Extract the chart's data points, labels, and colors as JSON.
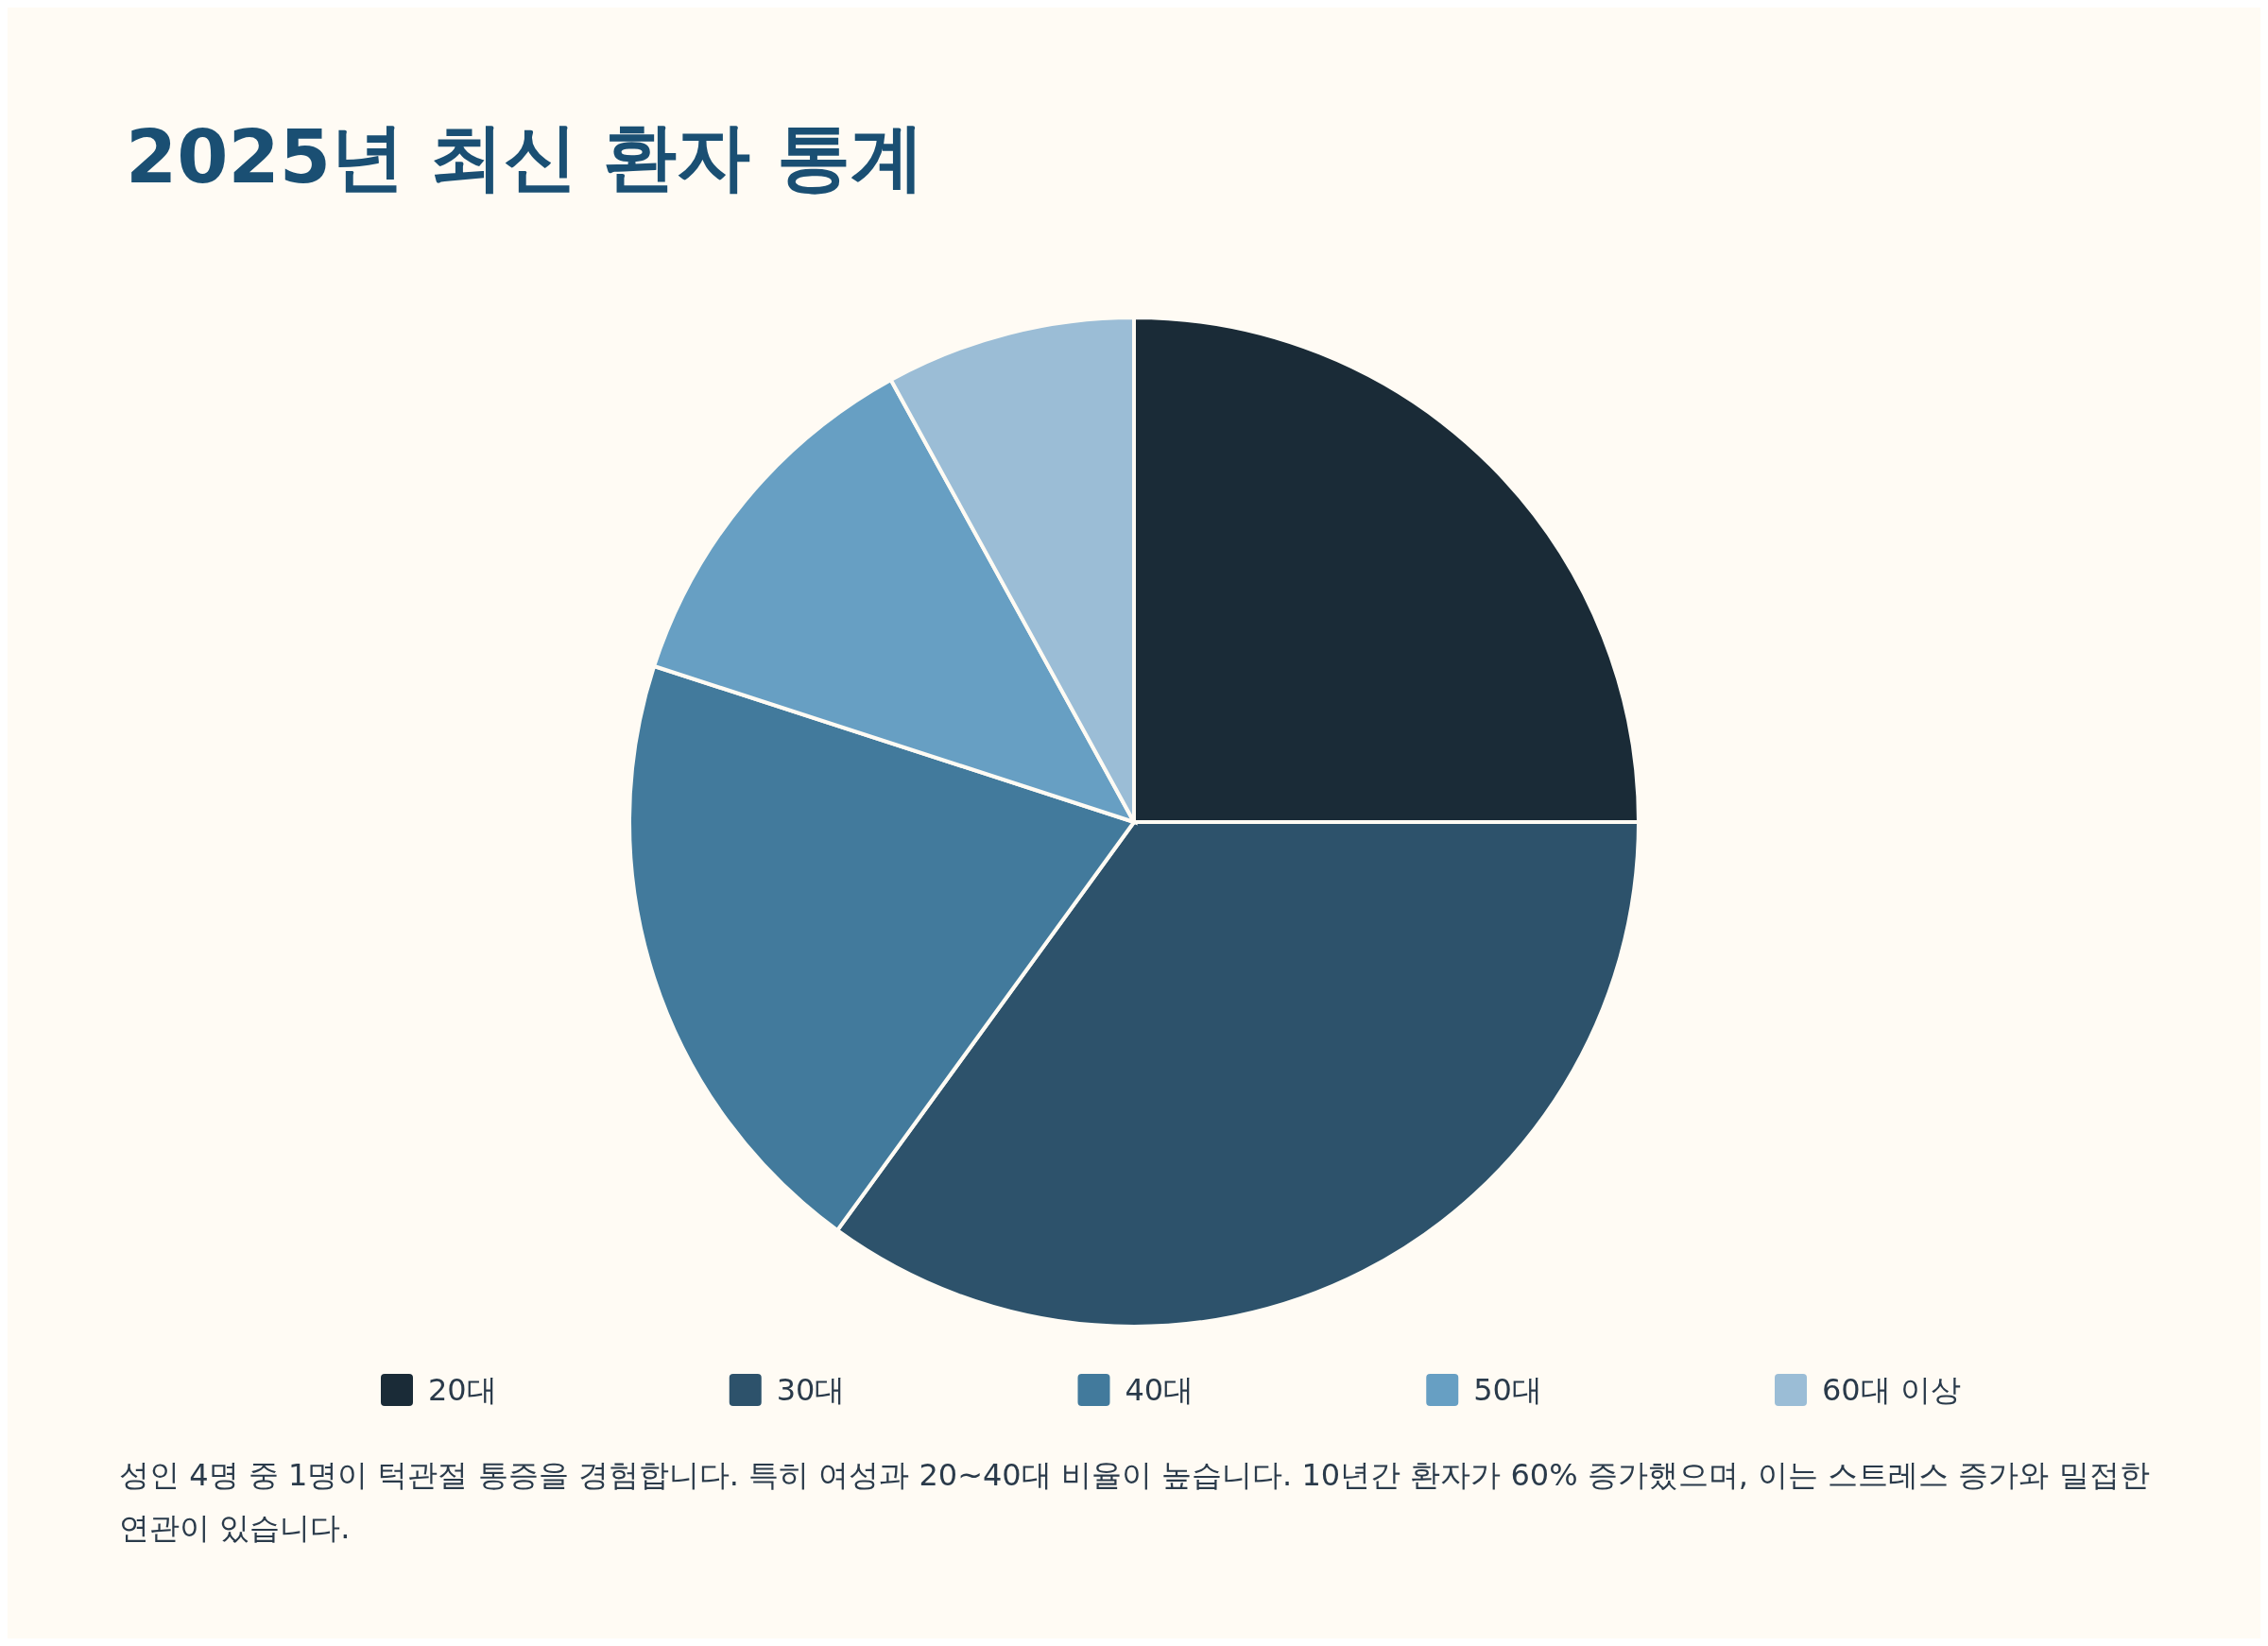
{
  "chart_data": {
    "type": "pie",
    "title": "2025년 최신 환자 통계",
    "categories": [
      "20대",
      "30대",
      "40대",
      "50대",
      "60대 이상"
    ],
    "values": [
      25,
      35,
      20,
      12,
      8
    ],
    "colors": [
      "#1a2b37",
      "#2d526b",
      "#427a9c",
      "#679fc3",
      "#9bbdd6"
    ],
    "legend": "bottom",
    "annotations": [
      "성인 4명 중 1명이 턱관절 통증을 경험합니다. 특히 여성과 20~40대 비율이 높습니다. 10년간 환자가 60% 증가했으며, 이는 스트레스 증가와 밀접한 연관이 있습니다."
    ]
  }
}
